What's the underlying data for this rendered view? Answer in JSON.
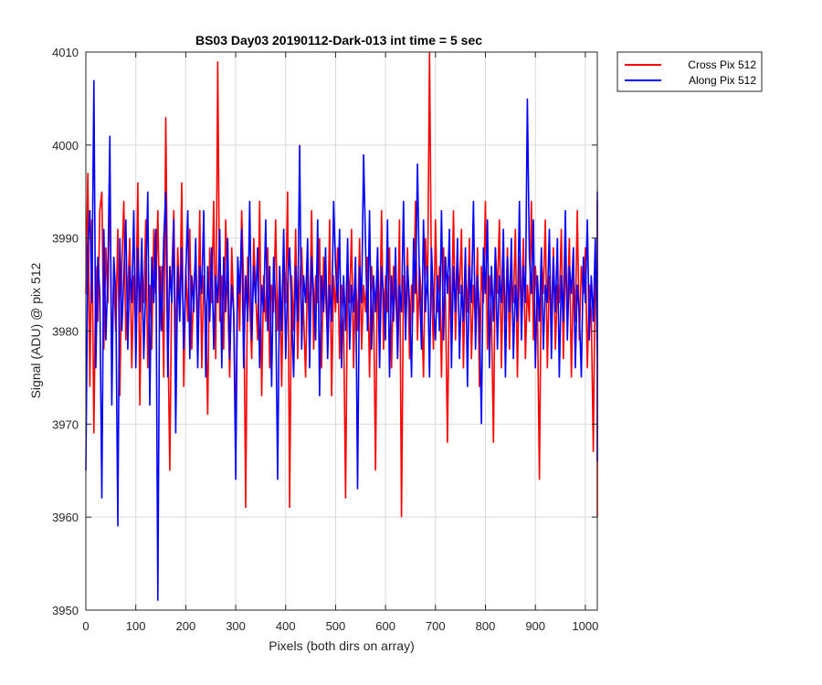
{
  "chart_data": {
    "type": "line",
    "title": "BS03 Day03 20190112-Dark-013 int time = 5 sec",
    "xlabel": "Pixels (both dirs on array)",
    "ylabel": "Signal (ADU) @ pix 512",
    "xlim": [
      0,
      1024
    ],
    "ylim": [
      3950,
      4010
    ],
    "xticks": [
      0,
      100,
      200,
      300,
      400,
      500,
      600,
      700,
      800,
      900,
      1000
    ],
    "yticks": [
      3950,
      3960,
      3970,
      3980,
      3990,
      4000,
      4010
    ],
    "grid": true,
    "legend_position": "outside-top-right",
    "sample_step": 4,
    "series": [
      {
        "name": "Cross Pix 512",
        "color": "#ff0000",
        "values": [
          3984,
          3997,
          3974,
          3992,
          3969,
          3987,
          3981,
          3993,
          3995,
          3978,
          3989,
          3983,
          3997,
          3977,
          3986,
          3980,
          3991,
          3973,
          3987,
          3994,
          3979,
          3984,
          3990,
          3976,
          3986,
          3981,
          3996,
          3972,
          3987,
          3983,
          3992,
          3976,
          3985,
          3978,
          3991,
          3984,
          3993,
          3980,
          3987,
          3975,
          4003,
          3981,
          3965,
          3986,
          3993,
          3977,
          3989,
          3982,
          3996,
          3974,
          3987,
          3981,
          3991,
          3978,
          3985,
          3988,
          3979,
          3993,
          3976,
          3986,
          3982,
          3971,
          3989,
          3983,
          3994,
          3977,
          4009,
          3981,
          3986,
          3978,
          3992,
          3984,
          3975,
          3989,
          3982,
          3968,
          3987,
          3980,
          3993,
          3985,
          3961,
          3988,
          3983,
          3977,
          3990,
          3984,
          3979,
          3994,
          3973,
          3986,
          3981,
          3989,
          3976,
          3985,
          3982,
          3992,
          3980,
          3987,
          3974,
          3988,
          3983,
          3995,
          3961,
          3986,
          3980,
          3991,
          3977,
          3985,
          3989,
          3982,
          3975,
          3987,
          3981,
          3993,
          3978,
          3986,
          3983,
          3990,
          3976,
          3988,
          3984,
          3979,
          3992,
          3973,
          3986,
          3982,
          3989,
          3977,
          3985,
          3981,
          3962,
          3987,
          3983,
          3991,
          3976,
          3986,
          3980,
          3990,
          3978,
          3985,
          3982,
          3988,
          3975,
          3987,
          3983,
          3965,
          3989,
          3980,
          3993,
          3978,
          3986,
          3982,
          3989,
          3976,
          3987,
          3984,
          3979,
          3992,
          3960,
          3986,
          3981,
          3989,
          3977,
          3985,
          3982,
          3994,
          3979,
          3987,
          3983,
          3975,
          3990,
          3984,
          4010,
          3985,
          3978,
          3992,
          3982,
          3987,
          3975,
          3989,
          3983,
          3968,
          3986,
          3980,
          3993,
          3979,
          3988,
          3984,
          3991,
          3976,
          3987,
          3982,
          3990,
          3977,
          3985,
          3981,
          3989,
          3974,
          3987,
          3983,
          3994,
          3978,
          3986,
          3982,
          3968,
          3989,
          3984,
          3992,
          3976,
          3987,
          3981,
          3989,
          3978,
          3986,
          3983,
          3991,
          3975,
          3988,
          3982,
          3990,
          3977,
          3985,
          3981,
          3994,
          3979,
          3987,
          3983,
          3964,
          3988,
          3984,
          3992,
          3976,
          3986,
          3981,
          3989,
          3978,
          3985,
          3983,
          3991,
          3977,
          3988,
          3982,
          3990,
          3975,
          3986,
          3981,
          3993,
          3979,
          3987,
          3984,
          3989,
          3976,
          3985,
          3982,
          3967,
          3988,
          3983,
          3992,
          3979,
          3986,
          3981,
          3990,
          3977,
          3988,
          3984,
          3991,
          3976,
          3986,
          3982,
          3989,
          3978,
          3985,
          3983,
          3994,
          3975,
          3987,
          3981,
          3992,
          3979,
          3986,
          3984,
          3990,
          3977,
          3988,
          3982,
          3965,
          3986,
          3983,
          3991,
          3976,
          3985,
          3981,
          3989,
          3978,
          3987,
          3984,
          3993,
          3977,
          3986,
          3982,
          3988,
          3975,
          3987,
          3983,
          3991,
          3979,
          3985,
          3981,
          3963,
          3960
        ]
      },
      {
        "name": "Along Pix 512",
        "color": "#0000ff",
        "values": [
          3965,
          3989,
          3993,
          3983,
          4007,
          3976,
          3988,
          3984,
          3962,
          3991,
          3979,
          3986,
          4001,
          3972,
          3988,
          3984,
          3959,
          3990,
          3980,
          3986,
          3992,
          3978,
          3987,
          3983,
          3993,
          3976,
          3989,
          3982,
          3990,
          3977,
          3985,
          3995,
          3972,
          3988,
          3983,
          3991,
          3951,
          3987,
          3980,
          3990,
          3995,
          3975,
          3987,
          3983,
          3992,
          3969,
          3987,
          3981,
          3989,
          3978,
          3986,
          3993,
          3977,
          3986,
          3982,
          3990,
          3976,
          3987,
          3984,
          3993,
          3975,
          3987,
          3981,
          3989,
          3978,
          3986,
          3983,
          3991,
          3976,
          3988,
          3982,
          3990,
          3977,
          3985,
          3982,
          3964,
          3988,
          3984,
          3991,
          3976,
          3986,
          3981,
          3994,
          3979,
          3987,
          3983,
          3989,
          3976,
          3985,
          3982,
          3992,
          3980,
          3987,
          3974,
          3988,
          3983,
          3964,
          3987,
          3980,
          3991,
          3977,
          3985,
          3989,
          3982,
          3975,
          3987,
          3981,
          4000,
          3978,
          3986,
          3983,
          3990,
          3976,
          3988,
          3984,
          3979,
          3992,
          3973,
          3986,
          3982,
          3989,
          3977,
          3985,
          3981,
          3994,
          3987,
          3983,
          3991,
          3976,
          3986,
          3980,
          3990,
          3978,
          3985,
          3982,
          3988,
          3963,
          3987,
          3983,
          3999,
          3989,
          3980,
          3993,
          3978,
          3986,
          3982,
          3989,
          3976,
          3987,
          3984,
          3979,
          3992,
          3975,
          3986,
          3981,
          3989,
          3977,
          3985,
          3982,
          3994,
          3979,
          3987,
          3983,
          3975,
          3990,
          3984,
          3998,
          3985,
          3978,
          3992,
          3982,
          3987,
          3975,
          3989,
          3983,
          3979,
          3986,
          3980,
          3993,
          3979,
          3988,
          3984,
          3991,
          3976,
          3987,
          3982,
          3990,
          3977,
          3985,
          3981,
          3989,
          3974,
          3987,
          3983,
          3994,
          3978,
          3986,
          3982,
          3970,
          3989,
          3984,
          3992,
          3976,
          3987,
          3981,
          3989,
          3978,
          3986,
          3983,
          3991,
          3975,
          3988,
          3982,
          3990,
          3977,
          3985,
          3981,
          3994,
          3979,
          3987,
          3983,
          4005,
          3988,
          3984,
          3992,
          3976,
          3986,
          3981,
          3989,
          3978,
          3985,
          3983,
          3991,
          3977,
          3988,
          3982,
          3990,
          3975,
          3986,
          3981,
          3993,
          3979,
          3987,
          3984,
          3989,
          3976,
          3985,
          3982,
          3975,
          3988,
          3983,
          3992,
          3979,
          3986,
          3981,
          3990,
          3977,
          3988,
          3984,
          3991,
          3976,
          3986,
          3982,
          3989,
          3978,
          3985,
          3983,
          3994,
          3975,
          3987,
          3981,
          3992,
          3979,
          3986,
          3984,
          3990,
          3977,
          3988,
          3982,
          3972,
          3986,
          3983,
          3991,
          3976,
          3985,
          3981,
          3989,
          3978,
          3987,
          3984,
          3993,
          3977,
          3986,
          3982,
          3988,
          3975,
          3987,
          3983,
          3991,
          3979,
          3985,
          3981,
          3995,
          3966
        ]
      }
    ]
  }
}
